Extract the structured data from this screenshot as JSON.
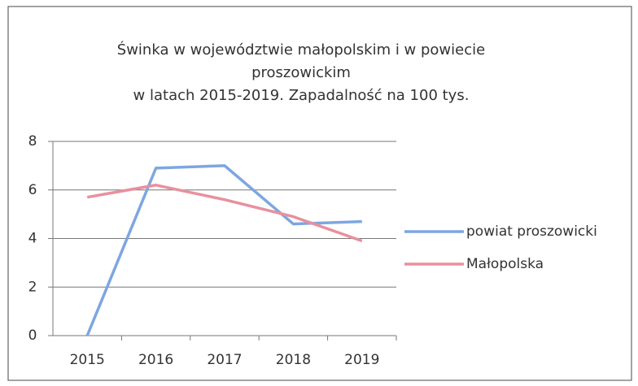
{
  "chart_data": {
    "type": "line",
    "title": [
      "Świnka w województwie małopolskim i w powiecie",
      "proszowickim",
      "w latach 2015-2019. Zapadalność na 100 tys."
    ],
    "categories": [
      "2015",
      "2016",
      "2017",
      "2018",
      "2019"
    ],
    "series": [
      {
        "name": "powiat proszowicki",
        "color": "#7ea6e0",
        "values": [
          0,
          6.9,
          7.0,
          4.6,
          4.7
        ]
      },
      {
        "name": "Małopolska",
        "color": "#e8909e",
        "values": [
          5.7,
          6.2,
          5.6,
          4.9,
          3.9
        ]
      }
    ],
    "ylim": [
      0,
      8
    ],
    "yticks": [
      0,
      2,
      4,
      6,
      8
    ],
    "grid": true,
    "legend": "right"
  }
}
